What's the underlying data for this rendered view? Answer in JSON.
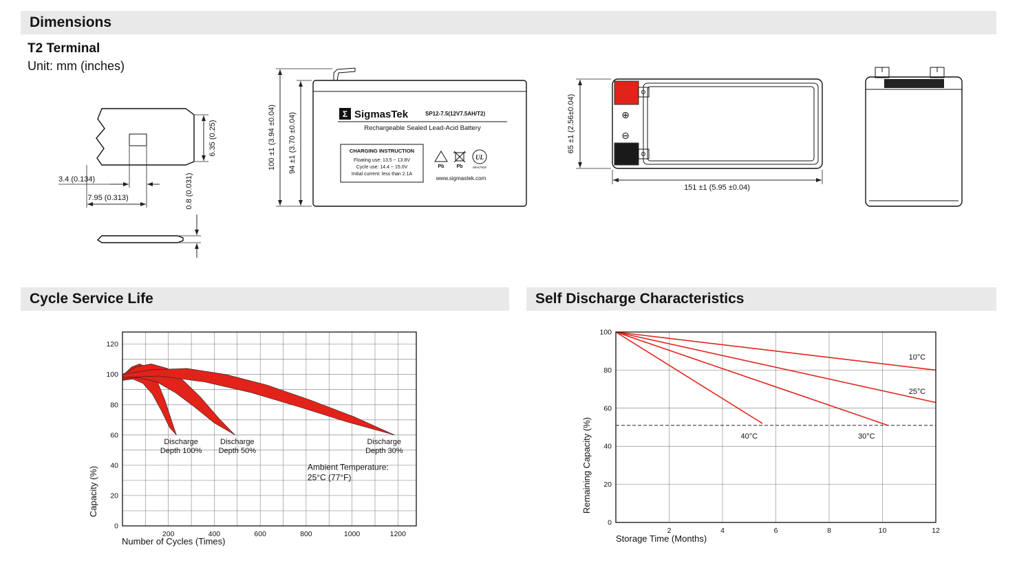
{
  "sections": {
    "dimensions": "Dimensions",
    "cycle_life": "Cycle Service Life",
    "self_discharge": "Self Discharge Characteristics"
  },
  "colors": {
    "accent_red": "#e2231a",
    "header_bar_bg": "#e9e9e9"
  },
  "dimensions_block": {
    "terminal_type": "T2 Terminal",
    "unit_note": "Unit: mm (inches)",
    "terminal_drawing": {
      "dim_tab_height": "6.35 (0.25)",
      "dim_hole_width": "3.4 (0.134)",
      "dim_tab_width": "7.95 (0.313)",
      "dim_thickness": "0.8 (0.031)"
    },
    "front_view": {
      "dim_total_height": "100 ±1 (3.94 ±0.04)",
      "dim_case_height": "94 ±1 (3.70 ±0.04)",
      "label": {
        "logo_glyph": "Σ",
        "brand": "SigmasTek",
        "model": "SP12-7.5(12V7.5AH/T2)",
        "battery_type": "Rechargeable Sealed Lead-Acid Battery",
        "charging_title": "CHARGING INSTRUCTION",
        "charging_line1": "Floating use: 13.5 ~ 13.8V",
        "charging_line2": "Cycle use: 14.4 ~ 15.0V",
        "charging_line3": "Initial current: less than 2.1A",
        "pb_label1": "Pb",
        "pb_label2": "Pb",
        "ul_mark": "UL",
        "ul_code": "MH47929",
        "website": "www.sigmastek.com"
      }
    },
    "top_view": {
      "dim_width": "65 ±1 (2.56±0.04)",
      "dim_length": "151 ±1 (5.95 ±0.04)",
      "plus_symbol": "⊕",
      "minus_symbol": "⊖"
    }
  },
  "chart_data": [
    {
      "type": "area",
      "title": "Cycle Service Life",
      "xlabel": "Number of Cycles (Times)",
      "ylabel": "Capacity (%)",
      "xlim": [
        0,
        1280
      ],
      "ylim": [
        0,
        128
      ],
      "xticks": [
        200,
        400,
        600,
        800,
        1000,
        1200
      ],
      "yticks": [
        0,
        20,
        40,
        60,
        80,
        100,
        120
      ],
      "x_grid_step": 100,
      "y_grid_step": 10,
      "grid": true,
      "legend_position": "none",
      "band_color": "#e2231a",
      "bands": [
        {
          "name": "Discharge Depth 100%",
          "upper": [
            [
              0,
              99
            ],
            [
              40,
              105
            ],
            [
              75,
              107
            ],
            [
              115,
              104
            ],
            [
              150,
              96
            ],
            [
              185,
              83
            ],
            [
              215,
              69
            ],
            [
              235,
              60
            ]
          ],
          "lower": [
            [
              0,
              96
            ],
            [
              45,
              97
            ],
            [
              90,
              94
            ],
            [
              130,
              87
            ],
            [
              170,
              76
            ],
            [
              205,
              65
            ],
            [
              235,
              60
            ]
          ]
        },
        {
          "name": "Discharge Depth 50%",
          "upper": [
            [
              0,
              100
            ],
            [
              60,
              105
            ],
            [
              125,
              107
            ],
            [
              195,
              104
            ],
            [
              265,
              96
            ],
            [
              340,
              85
            ],
            [
              420,
              71
            ],
            [
              490,
              60
            ]
          ],
          "lower": [
            [
              0,
              97
            ],
            [
              70,
              98
            ],
            [
              150,
              95
            ],
            [
              230,
              88
            ],
            [
              310,
              79
            ],
            [
              400,
              68
            ],
            [
              490,
              60
            ]
          ]
        },
        {
          "name": "Discharge Depth 30%",
          "upper": [
            [
              0,
              100
            ],
            [
              120,
              103
            ],
            [
              280,
              104
            ],
            [
              450,
              100
            ],
            [
              630,
              93
            ],
            [
              820,
              83
            ],
            [
              1010,
              72
            ],
            [
              1185,
              60
            ]
          ],
          "lower": [
            [
              0,
              98
            ],
            [
              160,
              99
            ],
            [
              360,
              95
            ],
            [
              560,
              88
            ],
            [
              760,
              79
            ],
            [
              970,
              69
            ],
            [
              1185,
              60
            ]
          ]
        }
      ],
      "band_labels": [
        {
          "lines": [
            "Discharge",
            "Depth 100%"
          ],
          "x": 255,
          "y": 54
        },
        {
          "lines": [
            "Discharge",
            "Depth 50%"
          ],
          "x": 500,
          "y": 54
        },
        {
          "lines": [
            "Discharge",
            "Depth 30%"
          ],
          "x": 1140,
          "y": 54
        }
      ],
      "annotation": {
        "lines": [
          "Ambient Temperature:",
          "25°C (77°F)"
        ],
        "x": 806,
        "y": 37
      }
    },
    {
      "type": "line",
      "title": "Self Discharge Characteristics",
      "xlabel": "Storage Time (Months)",
      "ylabel": "Remaining Capacity (%)",
      "xlim": [
        0,
        12
      ],
      "ylim": [
        0,
        100
      ],
      "xticks": [
        2,
        4,
        6,
        8,
        10,
        12
      ],
      "yticks": [
        0,
        20,
        40,
        60,
        80,
        100
      ],
      "x_grid_step": 2,
      "y_grid_step": 20,
      "grid": true,
      "legend_position": "inline",
      "line_color": "#e2231a",
      "series": [
        {
          "name": "10°C",
          "points": [
            [
              0,
              100
            ],
            [
              12,
              80
            ]
          ],
          "label_x": 11.3,
          "label_y": 85.5
        },
        {
          "name": "25°C",
          "points": [
            [
              0,
              100
            ],
            [
              12,
              63
            ]
          ],
          "label_x": 11.3,
          "label_y": 67.5
        },
        {
          "name": "30°C",
          "points": [
            [
              0,
              100
            ],
            [
              10.2,
              51
            ]
          ],
          "label_x": 9.4,
          "label_y": 44
        },
        {
          "name": "40°C",
          "points": [
            [
              0,
              100
            ],
            [
              5.5,
              52
            ]
          ],
          "label_x": 5.0,
          "label_y": 44
        }
      ],
      "dashed_line_y": 51
    }
  ]
}
